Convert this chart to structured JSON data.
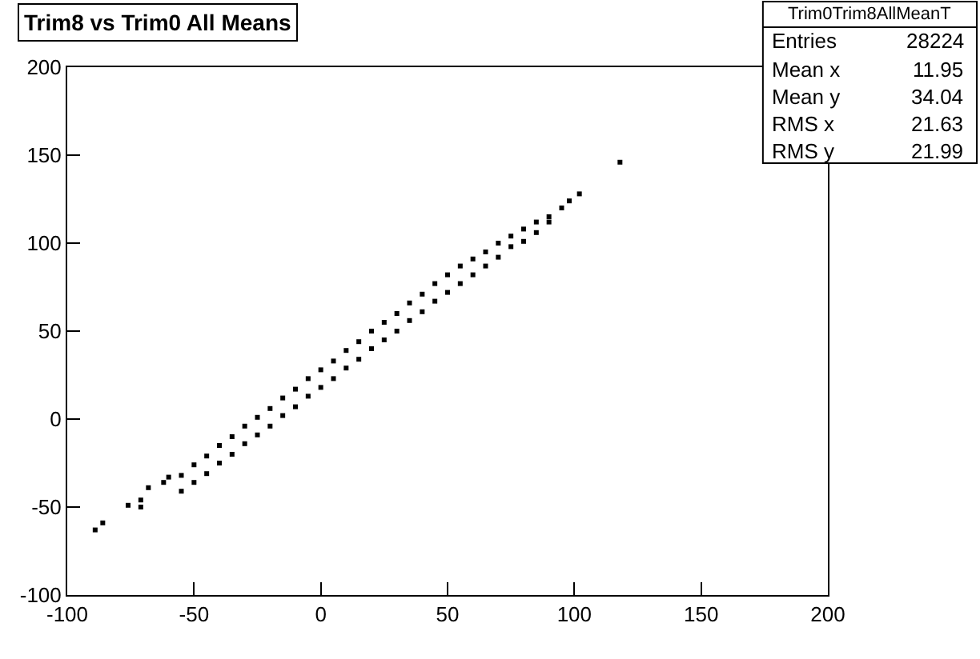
{
  "chart_data": {
    "type": "scatter",
    "title": "Trim8 vs Trim0 All Means",
    "annotations": [
      "Trim0Trim8AllMeanT",
      "Entries",
      "28224",
      "Mean x",
      "11.95",
      "Mean y",
      "34.04",
      "RMS x",
      "21.63",
      "RMS y",
      "21.99"
    ],
    "series": [
      {
        "color": "#000000",
        "x": [
          -89,
          -86,
          -76,
          -71,
          -71,
          -68,
          -62,
          -60,
          -55,
          -55,
          -50,
          -50,
          -45,
          -45,
          -40,
          -40,
          -35,
          -35,
          -30,
          -30,
          -25,
          -25,
          -20,
          -20,
          -15,
          -15,
          -10,
          -10,
          -5,
          -5,
          0,
          0,
          5,
          5,
          10,
          10,
          15,
          15,
          20,
          20,
          25,
          25,
          30,
          30,
          35,
          35,
          40,
          40,
          45,
          45,
          50,
          50,
          55,
          55,
          60,
          60,
          65,
          65,
          70,
          70,
          75,
          75,
          80,
          80,
          85,
          85,
          90,
          90,
          95,
          98,
          102,
          118
        ],
        "values": [
          -63,
          -59,
          -49,
          -50,
          -46,
          -39,
          -36,
          -33,
          -41,
          -32,
          -36,
          -26,
          -31,
          -21,
          -25,
          -15,
          -20,
          -10,
          -14,
          -4,
          -9,
          1,
          -4,
          6,
          2,
          12,
          7,
          17,
          13,
          23,
          18,
          28,
          23,
          33,
          29,
          39,
          34,
          44,
          40,
          50,
          45,
          55,
          50,
          60,
          56,
          66,
          61,
          71,
          67,
          77,
          72,
          82,
          77,
          87,
          82,
          91,
          87,
          95,
          92,
          100,
          98,
          104,
          101,
          108,
          106,
          112,
          112,
          115,
          120,
          124,
          128,
          146
        ]
      }
    ],
    "xlim": [
      -100,
      200
    ],
    "ylim": [
      -100,
      200
    ],
    "xticks": [
      -100,
      -50,
      0,
      50,
      100,
      150,
      200
    ],
    "yticks": [
      -100,
      -50,
      0,
      50,
      100,
      150,
      200
    ],
    "grid": false,
    "legend": false,
    "marker": "square"
  }
}
